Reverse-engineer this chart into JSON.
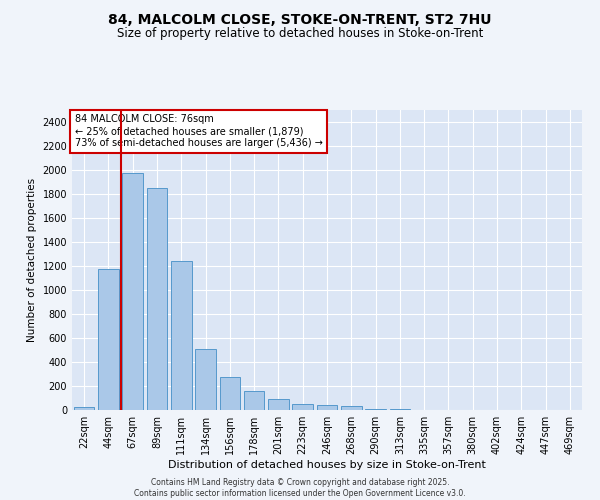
{
  "title_line1": "84, MALCOLM CLOSE, STOKE-ON-TRENT, ST2 7HU",
  "title_line2": "Size of property relative to detached houses in Stoke-on-Trent",
  "xlabel": "Distribution of detached houses by size in Stoke-on-Trent",
  "ylabel": "Number of detached properties",
  "categories": [
    "22sqm",
    "44sqm",
    "67sqm",
    "89sqm",
    "111sqm",
    "134sqm",
    "156sqm",
    "178sqm",
    "201sqm",
    "223sqm",
    "246sqm",
    "268sqm",
    "290sqm",
    "313sqm",
    "335sqm",
    "357sqm",
    "380sqm",
    "402sqm",
    "424sqm",
    "447sqm",
    "469sqm"
  ],
  "values": [
    25,
    1175,
    1975,
    1850,
    1240,
    510,
    275,
    155,
    90,
    50,
    40,
    35,
    5,
    5,
    3,
    2,
    2,
    2,
    2,
    2,
    2
  ],
  "bar_color": "#aac8e8",
  "bar_edge_color": "#5599cc",
  "vline_x_index": 1,
  "vline_color": "#cc0000",
  "annotation_text": "84 MALCOLM CLOSE: 76sqm\n← 25% of detached houses are smaller (1,879)\n73% of semi-detached houses are larger (5,436) →",
  "annotation_box_color": "#cc0000",
  "ylim": [
    0,
    2500
  ],
  "yticks": [
    0,
    200,
    400,
    600,
    800,
    1000,
    1200,
    1400,
    1600,
    1800,
    2000,
    2200,
    2400
  ],
  "background_color": "#dce6f5",
  "grid_color": "#ffffff",
  "fig_background": "#f0f4fa",
  "footer_line1": "Contains HM Land Registry data © Crown copyright and database right 2025.",
  "footer_line2": "Contains public sector information licensed under the Open Government Licence v3.0."
}
